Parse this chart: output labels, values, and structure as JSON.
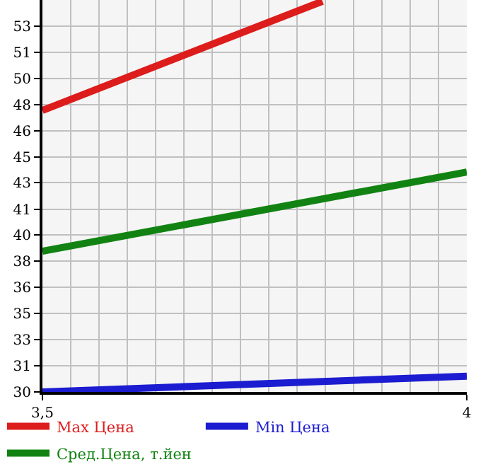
{
  "chart_data": {
    "type": "line",
    "x": [
      3.5,
      4
    ],
    "series": [
      {
        "name": "Max Цена",
        "color": "#dd1c1c",
        "x": [
          3.5,
          3.83
        ],
        "values": [
          47.5,
          54.4
        ]
      },
      {
        "name": "Min Цена",
        "color": "#1c1cd0",
        "values": [
          29.7,
          30.7
        ]
      },
      {
        "name": "Сред.Цена, т.йен",
        "color": "#128312",
        "values": [
          38.6,
          43.6
        ]
      }
    ],
    "xlim": [
      3.5,
      4
    ],
    "xticks": [
      {
        "value": 3.5,
        "label": "3,5"
      },
      4
    ],
    "ylim": [
      29.7,
      54.48
    ],
    "yticks": [
      {
        "value": 29.7,
        "label": "30"
      },
      {
        "value": 31.35,
        "label": "31"
      },
      {
        "value": 33.0,
        "label": "33"
      },
      {
        "value": 34.66,
        "label": "35"
      },
      {
        "value": 36.31,
        "label": "36"
      },
      {
        "value": 37.96,
        "label": "38"
      },
      {
        "value": 39.61,
        "label": "40"
      },
      {
        "value": 41.26,
        "label": "41"
      },
      {
        "value": 42.92,
        "label": "43"
      },
      {
        "value": 44.57,
        "label": "45"
      },
      {
        "value": 46.22,
        "label": "46"
      },
      {
        "value": 47.87,
        "label": "48"
      },
      {
        "value": 49.52,
        "label": "50"
      },
      {
        "value": 51.18,
        "label": "51"
      },
      {
        "value": 52.83,
        "label": "53"
      }
    ],
    "grid": true,
    "legend": "bottom",
    "marker": "none",
    "line_style": "solid"
  }
}
